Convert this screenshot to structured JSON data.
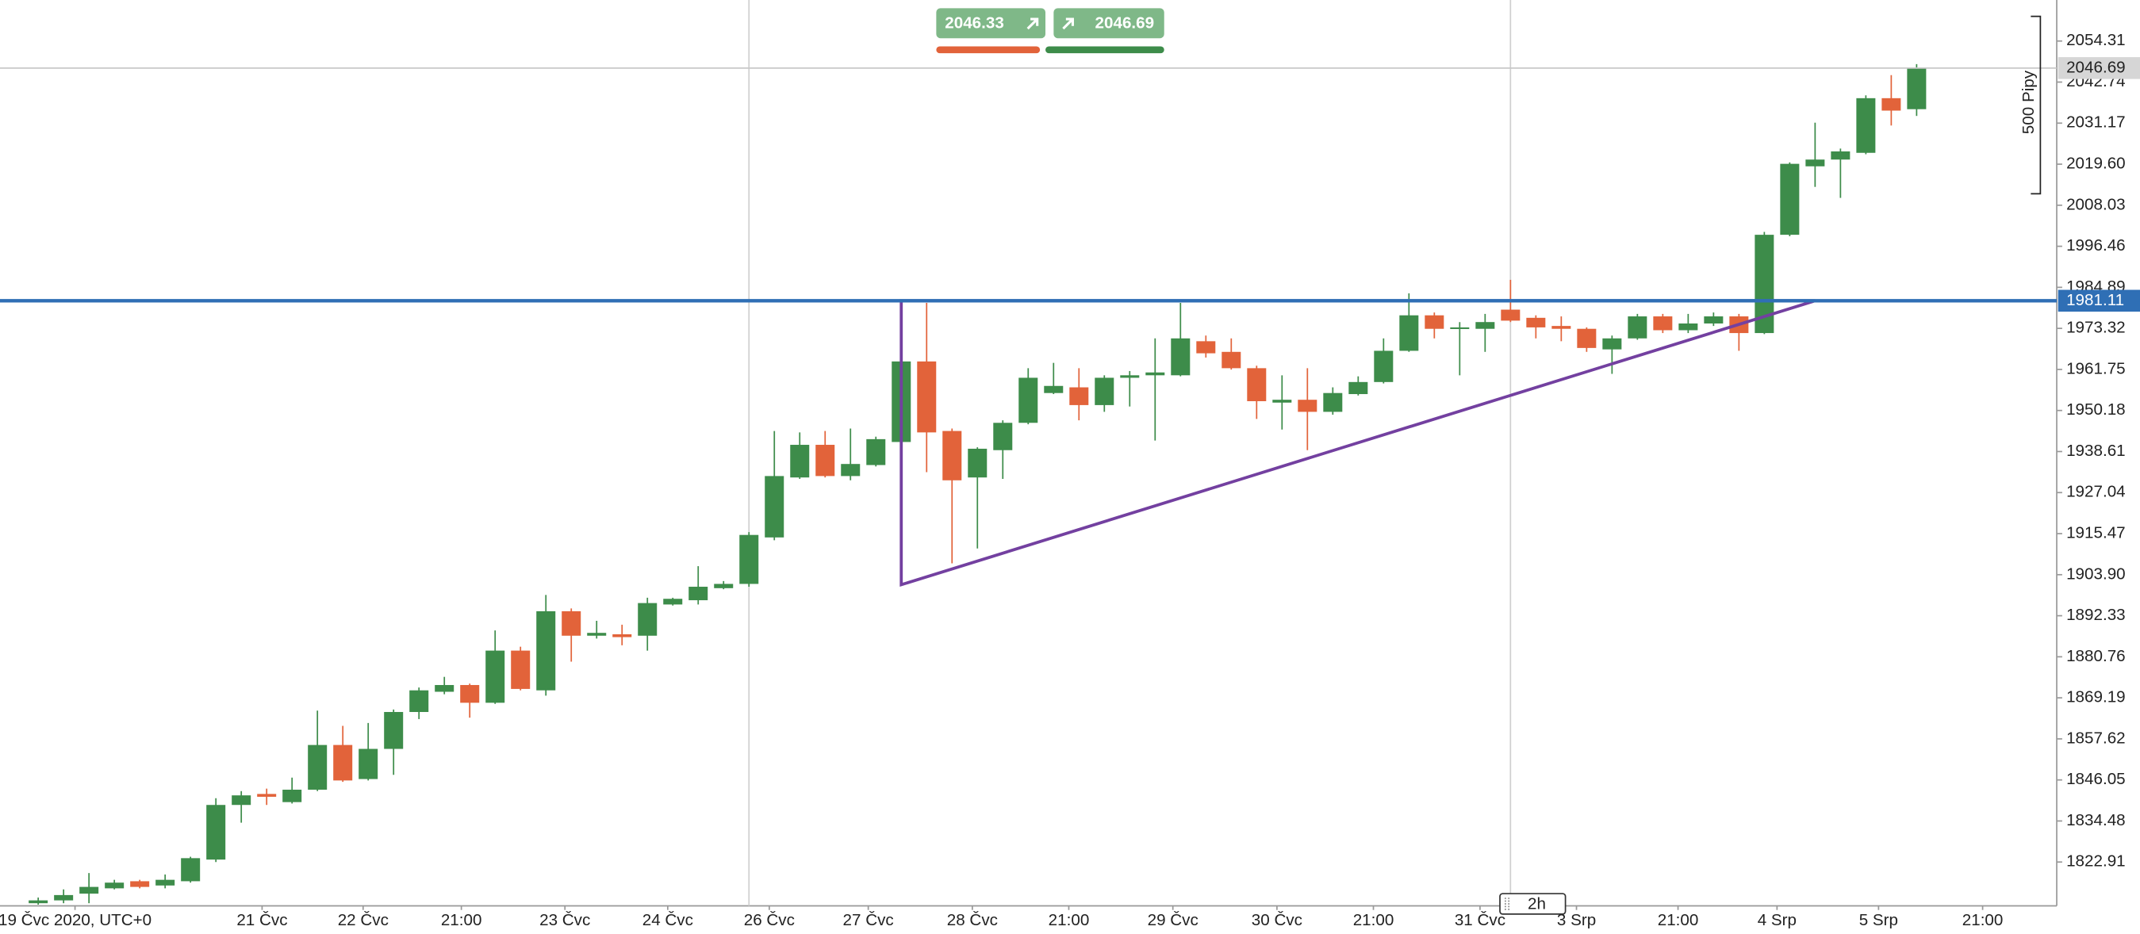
{
  "chart_data": {
    "type": "candlestick",
    "categories": [
      null,
      null,
      null,
      null,
      null,
      null,
      null,
      null,
      null,
      null,
      null,
      null,
      null,
      null,
      null,
      null,
      null,
      null,
      null,
      null,
      null,
      null,
      null,
      null,
      null,
      null,
      null,
      null,
      null,
      null,
      null,
      null,
      null,
      null,
      null,
      null,
      null,
      null,
      null,
      null,
      null,
      null,
      null,
      null,
      null,
      null,
      null,
      null,
      null,
      null,
      null,
      null,
      null,
      null,
      null,
      null,
      null,
      null,
      null,
      null,
      null,
      null,
      null,
      null,
      null,
      null,
      null,
      null,
      null,
      null,
      null,
      null,
      null,
      null,
      null
    ],
    "open": [
      1811.3,
      1812.1,
      1814.0,
      1815.5,
      1817.5,
      1816.3,
      1817.5,
      1823.6,
      1839.0,
      1842.1,
      1839.8,
      1843.3,
      1855.9,
      1846.3,
      1854.8,
      1865.2,
      1870.9,
      1872.8,
      1867.8,
      1882.5,
      1871.3,
      1893.6,
      1886.7,
      1887.1,
      1886.7,
      1895.5,
      1896.7,
      1900.1,
      1901.3,
      1914.4,
      1931.3,
      1940.5,
      1931.7,
      1934.8,
      1941.3,
      1964.0,
      1944.4,
      1931.3,
      1939.0,
      1946.7,
      1955.1,
      1956.7,
      1951.7,
      1959.4,
      1960.1,
      1960.1,
      1969.7,
      1966.7,
      1962.1,
      1952.4,
      1953.2,
      1949.8,
      1954.8,
      1958.2,
      1967.0,
      1977.0,
      1973.2,
      1973.2,
      1978.6,
      1976.3,
      1974.0,
      1973.2,
      1967.4,
      1970.5,
      1976.7,
      1972.8,
      1974.7,
      1976.7,
      1972.0,
      1999.7,
      2019.0,
      2020.9,
      2022.8,
      2038.2,
      2035.1
    ],
    "high": [
      1812.9,
      1815.2,
      1819.8,
      1817.9,
      1817.9,
      1819.4,
      1824.4,
      1840.9,
      1842.9,
      1843.6,
      1846.7,
      1865.6,
      1861.3,
      1862.1,
      1865.9,
      1872.1,
      1875.1,
      1873.2,
      1888.2,
      1883.6,
      1898.2,
      1894.4,
      1890.9,
      1889.8,
      1897.4,
      1897.4,
      1906.3,
      1902.1,
      1915.9,
      1944.4,
      1944.0,
      1944.4,
      1945.1,
      1942.8,
      1964.4,
      1980.5,
      1945.1,
      1939.8,
      1947.4,
      1962.1,
      1963.6,
      1962.1,
      1960.1,
      1961.3,
      1970.5,
      1980.5,
      1971.3,
      1970.5,
      1962.8,
      1960.1,
      1962.1,
      1956.7,
      1959.8,
      1970.5,
      1983.2,
      1977.8,
      1975.1,
      1977.4,
      1987.0,
      1977.0,
      1976.7,
      1973.6,
      1971.3,
      1977.4,
      1977.4,
      1977.4,
      1977.8,
      1977.4,
      2000.5,
      2020.1,
      2031.3,
      2024.0,
      2039.0,
      2044.7,
      2047.8
    ],
    "low": [
      1810.9,
      1811.3,
      1811.3,
      1815.2,
      1815.5,
      1815.5,
      1817.1,
      1822.9,
      1834.0,
      1839.0,
      1839.4,
      1842.9,
      1845.5,
      1845.9,
      1847.5,
      1863.2,
      1870.2,
      1863.6,
      1867.5,
      1871.3,
      1869.8,
      1879.4,
      1885.9,
      1884.0,
      1882.5,
      1895.2,
      1895.5,
      1899.8,
      1900.5,
      1913.6,
      1930.9,
      1931.3,
      1930.5,
      1934.4,
      1940.9,
      1932.8,
      1907.1,
      1911.3,
      1930.9,
      1946.3,
      1954.8,
      1947.4,
      1949.8,
      1951.3,
      1941.7,
      1959.8,
      1965.1,
      1961.7,
      1947.8,
      1944.8,
      1939.0,
      1949.0,
      1954.4,
      1957.8,
      1966.7,
      1970.5,
      1960.1,
      1966.7,
      1975.1,
      1970.5,
      1969.7,
      1966.7,
      1960.5,
      1970.1,
      1972.0,
      1972.0,
      1974.0,
      1967.0,
      1971.7,
      1999.3,
      2013.2,
      2010.1,
      2022.4,
      2030.5,
      2033.2
    ],
    "close": [
      1812.1,
      1813.6,
      1815.9,
      1817.1,
      1815.9,
      1817.9,
      1824.0,
      1839.0,
      1841.7,
      1841.3,
      1843.3,
      1855.9,
      1845.9,
      1854.8,
      1865.2,
      1871.3,
      1872.8,
      1867.8,
      1882.5,
      1871.7,
      1893.6,
      1886.7,
      1887.5,
      1886.3,
      1895.9,
      1897.1,
      1900.5,
      1901.3,
      1915.1,
      1931.7,
      1940.5,
      1931.7,
      1935.1,
      1942.1,
      1964.0,
      1944.0,
      1930.5,
      1939.4,
      1946.7,
      1959.4,
      1957.1,
      1951.7,
      1959.4,
      1960.1,
      1960.9,
      1970.5,
      1966.3,
      1962.1,
      1952.8,
      1953.2,
      1949.8,
      1955.1,
      1958.2,
      1967.0,
      1977.0,
      1973.2,
      1973.6,
      1975.1,
      1975.5,
      1973.6,
      1973.2,
      1967.8,
      1970.5,
      1976.7,
      1972.8,
      1974.7,
      1976.7,
      1972.0,
      1999.7,
      2019.7,
      2020.9,
      2023.2,
      2038.2,
      2034.7,
      2046.69
    ],
    "up_color": "#3d8c4a",
    "down_color": "#e2633a",
    "xlim": [
      -1.505,
      79.52
    ],
    "xticks": [
      {
        "value": 1.45,
        "label": "19 Čvc 2020, UTC+0"
      },
      {
        "value": 8.82,
        "label": "21 Čvc"
      },
      {
        "value": 12.8,
        "label": "22 Čvc"
      },
      {
        "value": 16.67,
        "label": "21:00"
      },
      {
        "value": 20.75,
        "label": "23 Čvc"
      },
      {
        "value": 24.8,
        "label": "24 Čvc"
      },
      {
        "value": 28.8,
        "label": "26 Čvc"
      },
      {
        "value": 32.7,
        "label": "27 Čvc"
      },
      {
        "value": 36.8,
        "label": "28 Čvc"
      },
      {
        "value": 40.6,
        "label": "21:00"
      },
      {
        "value": 44.7,
        "label": "29 Čvc"
      },
      {
        "value": 48.8,
        "label": "30 Čvc"
      },
      {
        "value": 52.6,
        "label": "21:00"
      },
      {
        "value": 56.8,
        "label": "31 Čvc"
      },
      {
        "value": 60.6,
        "label": "3 Srp"
      },
      {
        "value": 64.6,
        "label": "21:00"
      },
      {
        "value": 68.5,
        "label": "4 Srp"
      },
      {
        "value": 72.5,
        "label": "5 Srp"
      },
      {
        "value": 76.6,
        "label": "21:00"
      }
    ],
    "xgrid": [
      28,
      58
    ],
    "ylim": [
      1810.55,
      2065.87
    ],
    "yticks": [
      2054.31,
      2042.74,
      2031.17,
      {
        "value": 2019.6,
        "label": "2019.60"
      },
      2008.03,
      1996.46,
      1984.89,
      1973.32,
      1961.75,
      1950.18,
      1938.61,
      1927.04,
      1915.47,
      {
        "value": 1903.9,
        "label": "1903.90"
      },
      1892.33,
      1880.76,
      1869.19,
      1857.62,
      1846.05,
      1834.48,
      1822.91
    ],
    "current_price": {
      "value": 2046.69,
      "label": "2046.69"
    },
    "level": {
      "value": 1981.11,
      "label": "1981.11",
      "color": "#2f6fb5"
    },
    "triangle": {
      "x": [
        34,
        70,
        34
      ],
      "y": [
        1981.11,
        1981.11,
        1901.07
      ],
      "color": "#7340a0"
    },
    "quotes": {
      "sell": {
        "value": 2046.33,
        "label": "2046.33"
      },
      "buy": {
        "value": 2046.69,
        "label": "2046.69"
      }
    },
    "range_label": "500 Pipy",
    "interval": "2h"
  }
}
